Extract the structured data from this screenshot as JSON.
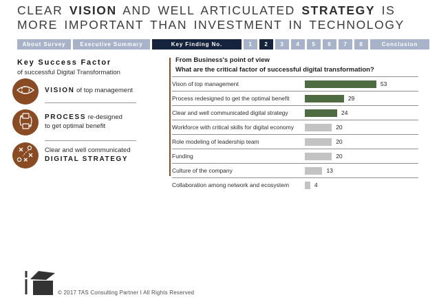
{
  "title": {
    "l1a": "CLEAR ",
    "l1b": "VISION",
    "l1c": " AND WELL ARTICULATED ",
    "l1d": "STRATEGY",
    "l1e": " IS",
    "line2": "MORE IMPORTANT THAN INVESTMENT IN TECHNOLOGY"
  },
  "nav": {
    "about": "About Survey",
    "exec": "Executive Summary",
    "key_finding": "Key Finding No.",
    "numbers": [
      "1",
      "2",
      "3",
      "4",
      "5",
      "6",
      "7",
      "8"
    ],
    "active_number": "2",
    "conclusion": "Conclusion"
  },
  "left_panel": {
    "heading": "Key Success Factor",
    "subheading": "of successful Digital Transformation",
    "item1": {
      "icon": "eye-icon",
      "bold": "VISION",
      "rest": " of top management"
    },
    "item2": {
      "icon": "process-icon",
      "bold": "PROCESS",
      "rest": " re-designed",
      "line2": "to get optimal benefit"
    },
    "item3": {
      "icon": "strategy-icon",
      "line1": "Clear and well communicated",
      "bold": "DIGITAL STRATEGY"
    }
  },
  "chart": {
    "header1": "From Business's point of view",
    "header2": "What are the critical factor of successful digital transformation?",
    "rows": [
      {
        "label": "Vison of top management",
        "value": 53,
        "color": "green"
      },
      {
        "label": "Process redesigned to get the optimal benefit",
        "value": 29,
        "color": "green"
      },
      {
        "label": "Clear and well communicated digital strategy",
        "value": 24,
        "color": "green"
      },
      {
        "label": "Workforce with critical skills for digital economy",
        "value": 20,
        "color": "gray"
      },
      {
        "label": "Role modeling of leadership team",
        "value": 20,
        "color": "gray"
      },
      {
        "label": "Funding",
        "value": 20,
        "color": "gray"
      },
      {
        "label": "Culture of the company",
        "value": 13,
        "color": "gray"
      },
      {
        "label": "Collaboration among network and ecosystem",
        "value": 4,
        "color": "gray"
      }
    ]
  },
  "chart_data": {
    "type": "bar",
    "orientation": "horizontal",
    "subtitle": "From Business's point of view",
    "title": "What are the critical factor of successful digital transformation?",
    "categories": [
      "Vison of top management",
      "Process redesigned to get the optimal benefit",
      "Clear and well communicated digital strategy",
      "Workforce with critical skills for digital economy",
      "Role modeling of leadership team",
      "Funding",
      "Culture of the company",
      "Collaboration among network and ecosystem"
    ],
    "values": [
      53,
      29,
      24,
      20,
      20,
      20,
      13,
      4
    ],
    "highlighted_categories": [
      "Vison of top management",
      "Process redesigned to get the optimal benefit",
      "Clear and well communicated digital strategy"
    ],
    "xlim": [
      0,
      60
    ],
    "grid": false,
    "value_labels": true,
    "bar_color_highlight": "#4f6b41",
    "bar_color_default": "#c3c3c3",
    "legend": null
  },
  "footer": {
    "copyright": "© 2017 TAS Consulting Partner I All Rights Reserved"
  },
  "colors": {
    "accent_rust": "#8a4a22",
    "nav_inactive": "#a8b2c8",
    "nav_active": "#16233c",
    "bar_green": "#4f6b41",
    "bar_gray": "#c3c3c3"
  }
}
